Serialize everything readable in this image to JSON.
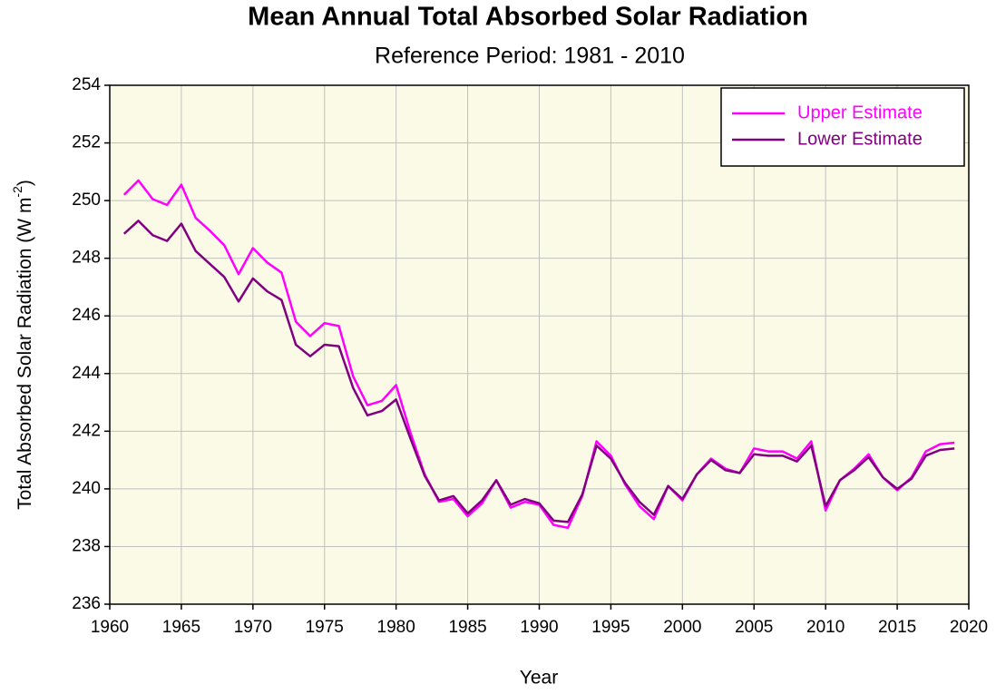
{
  "chart_data": {
    "type": "line",
    "title": "Mean Annual Total Absorbed Solar Radiation",
    "subtitle": "Reference Period: 1981 - 2010",
    "xlabel": "Year",
    "ylabel": [
      "Total Absorbed Solar Radiation (W m",
      "-2",
      ")"
    ],
    "x": [
      1961,
      1962,
      1963,
      1964,
      1965,
      1966,
      1967,
      1968,
      1969,
      1970,
      1971,
      1972,
      1973,
      1974,
      1975,
      1976,
      1977,
      1978,
      1979,
      1980,
      1981,
      1982,
      1983,
      1984,
      1985,
      1986,
      1987,
      1988,
      1989,
      1990,
      1991,
      1992,
      1993,
      1994,
      1995,
      1996,
      1997,
      1998,
      1999,
      2000,
      2001,
      2002,
      2003,
      2004,
      2005,
      2006,
      2007,
      2008,
      2009,
      2010,
      2011,
      2012,
      2013,
      2014,
      2015,
      2016,
      2017,
      2018,
      2019
    ],
    "series": [
      {
        "name": "Upper Estimate",
        "color": "#ff00ff",
        "values": [
          250.2,
          250.7,
          250.05,
          249.85,
          250.55,
          249.4,
          248.95,
          248.45,
          247.45,
          248.35,
          247.85,
          247.5,
          245.8,
          245.3,
          245.75,
          245.65,
          243.9,
          242.9,
          243.05,
          243.6,
          241.95,
          240.5,
          239.55,
          239.65,
          239.05,
          239.5,
          240.3,
          239.35,
          239.55,
          239.45,
          238.75,
          238.65,
          239.75,
          241.65,
          241.15,
          240.15,
          239.4,
          238.95,
          240.1,
          239.6,
          240.5,
          241.05,
          240.7,
          240.55,
          241.4,
          241.3,
          241.3,
          241.05,
          241.65,
          239.25,
          240.3,
          240.7,
          241.2,
          240.4,
          239.95,
          240.4,
          241.3,
          241.55,
          241.6
        ]
      },
      {
        "name": "Lower Estimate",
        "color": "#800080",
        "values": [
          248.85,
          249.3,
          248.8,
          248.6,
          249.2,
          248.25,
          247.8,
          247.35,
          246.5,
          247.3,
          246.85,
          246.55,
          245.0,
          244.6,
          245.0,
          244.95,
          243.5,
          242.55,
          242.7,
          243.1,
          241.75,
          240.45,
          239.6,
          239.75,
          239.15,
          239.6,
          240.3,
          239.45,
          239.65,
          239.5,
          238.9,
          238.85,
          239.8,
          241.5,
          241.05,
          240.2,
          239.55,
          239.1,
          240.1,
          239.65,
          240.5,
          241.0,
          240.65,
          240.55,
          241.2,
          241.15,
          241.15,
          240.95,
          241.5,
          239.4,
          240.3,
          240.65,
          241.1,
          240.4,
          240.0,
          240.35,
          241.15,
          241.35,
          241.4
        ]
      }
    ],
    "xlim": [
      1960,
      2020
    ],
    "xticks": [
      1960,
      1965,
      1970,
      1975,
      1980,
      1985,
      1990,
      1995,
      2000,
      2005,
      2010,
      2015,
      2020
    ],
    "ylim": [
      236,
      254
    ],
    "yticks": [
      236,
      238,
      240,
      242,
      244,
      246,
      248,
      250,
      252,
      254
    ],
    "grid": true,
    "legend": "upper right",
    "background": "#fafae6"
  }
}
